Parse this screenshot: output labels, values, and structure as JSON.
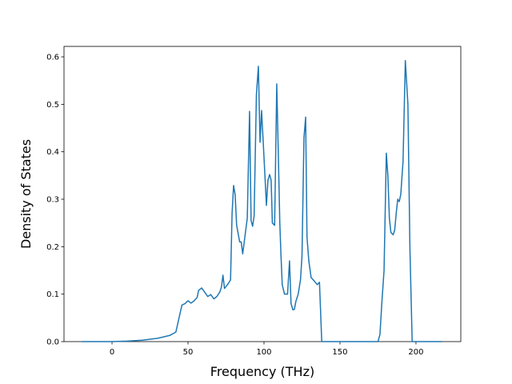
{
  "chart_data": {
    "type": "line",
    "xlabel": "Frequency (THz)",
    "ylabel": "Density of States",
    "color": "#1f77b4",
    "x": [
      -20,
      0,
      10,
      20,
      30,
      38,
      42,
      46,
      48,
      50,
      52,
      54,
      56,
      57,
      59,
      61,
      63,
      65,
      67,
      69,
      71,
      72,
      73,
      74,
      76,
      78,
      79,
      80,
      81,
      82,
      84,
      85,
      86,
      87,
      89,
      90.5,
      91.5,
      92.5,
      93.5,
      95,
      96.3,
      97.4,
      98.4,
      99.5,
      101.6,
      102.6,
      103.7,
      104.7,
      105.5,
      107,
      108.4,
      109.4,
      110.4,
      111.2,
      112,
      113.5,
      115.5,
      116.8,
      117.8,
      119,
      120,
      121,
      122.5,
      124,
      125,
      126.3,
      127.4,
      128.3,
      129.5,
      131,
      133,
      135,
      136.5,
      138,
      150,
      175,
      176.3,
      177.5,
      179,
      180.5,
      181.5,
      182.5,
      183.5,
      185,
      186,
      187,
      188,
      189,
      190,
      191.5,
      193,
      194.7,
      196,
      197.5,
      199,
      217
    ],
    "values": [
      0,
      0,
      0.001,
      0.003,
      0.007,
      0.013,
      0.02,
      0.077,
      0.08,
      0.086,
      0.081,
      0.086,
      0.093,
      0.108,
      0.113,
      0.104,
      0.095,
      0.099,
      0.09,
      0.095,
      0.105,
      0.115,
      0.14,
      0.112,
      0.12,
      0.13,
      0.27,
      0.329,
      0.31,
      0.245,
      0.21,
      0.21,
      0.185,
      0.21,
      0.26,
      0.485,
      0.255,
      0.243,
      0.265,
      0.52,
      0.58,
      0.42,
      0.487,
      0.42,
      0.287,
      0.34,
      0.352,
      0.34,
      0.25,
      0.245,
      0.543,
      0.4,
      0.25,
      0.18,
      0.12,
      0.1,
      0.1,
      0.17,
      0.08,
      0.067,
      0.068,
      0.085,
      0.1,
      0.13,
      0.18,
      0.43,
      0.473,
      0.22,
      0.17,
      0.135,
      0.128,
      0.12,
      0.125,
      0,
      0,
      0,
      0.015,
      0.08,
      0.15,
      0.397,
      0.35,
      0.26,
      0.23,
      0.225,
      0.235,
      0.27,
      0.3,
      0.295,
      0.31,
      0.38,
      0.592,
      0.5,
      0.2,
      0,
      0,
      0
    ],
    "xlim": [
      -31.6,
      229.5
    ],
    "xticks": [
      0,
      50,
      100,
      150,
      200
    ],
    "ylim": [
      0,
      0.622
    ],
    "yticks": [
      {
        "value": 0,
        "label": "0.0"
      },
      0.1,
      0.2,
      0.3,
      0.4,
      0.5,
      0.6
    ],
    "grid": false
  }
}
